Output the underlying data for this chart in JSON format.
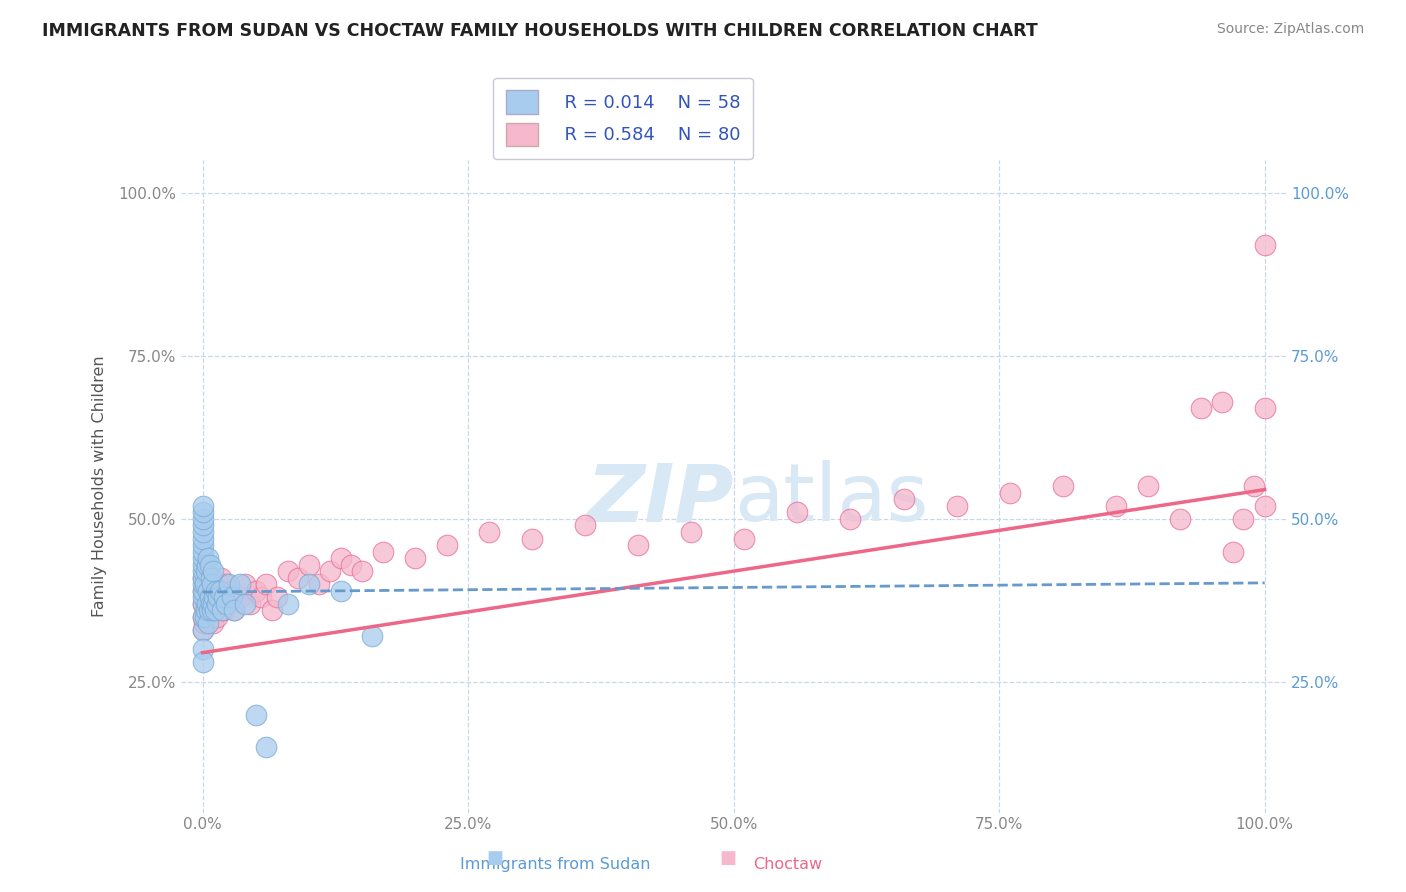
{
  "title": "IMMIGRANTS FROM SUDAN VS CHOCTAW FAMILY HOUSEHOLDS WITH CHILDREN CORRELATION CHART",
  "source": "Source: ZipAtlas.com",
  "ylabel": "Family Households with Children",
  "x_label_bottom_left": "Immigrants from Sudan",
  "x_label_bottom_right": "Choctaw",
  "xlim": [
    -0.02,
    1.02
  ],
  "ylim": [
    0.05,
    1.05
  ],
  "xtick_labels": [
    "0.0%",
    "25.0%",
    "50.0%",
    "75.0%",
    "100.0%"
  ],
  "xtick_positions": [
    0.0,
    0.25,
    0.5,
    0.75,
    1.0
  ],
  "ytick_labels": [
    "25.0%",
    "50.0%",
    "75.0%",
    "100.0%"
  ],
  "ytick_positions": [
    0.25,
    0.5,
    0.75,
    1.0
  ],
  "legend_r1": "R = 0.014",
  "legend_n1": "N = 58",
  "legend_r2": "R = 0.584",
  "legend_n2": "N = 80",
  "color_blue": "#A8CCEE",
  "color_pink": "#F5B8CC",
  "color_blue_edge": "#7AABD4",
  "color_pink_edge": "#E87098",
  "color_line_blue": "#6699CC",
  "color_line_pink": "#EE6688",
  "watermark_text": "ZIPatlas",
  "watermark_color": "#D8E8F5",
  "grid_color": "#C8D8EC",
  "background_color": "#FFFFFF",
  "blue_scatter_x": [
    0.0,
    0.0,
    0.0,
    0.0,
    0.0,
    0.0,
    0.0,
    0.0,
    0.0,
    0.0,
    0.0,
    0.0,
    0.0,
    0.0,
    0.0,
    0.0,
    0.0,
    0.0,
    0.0,
    0.0,
    0.002,
    0.002,
    0.003,
    0.003,
    0.004,
    0.004,
    0.005,
    0.005,
    0.005,
    0.006,
    0.007,
    0.007,
    0.008,
    0.008,
    0.009,
    0.009,
    0.01,
    0.01,
    0.011,
    0.012,
    0.013,
    0.014,
    0.015,
    0.016,
    0.018,
    0.02,
    0.022,
    0.025,
    0.028,
    0.03,
    0.035,
    0.04,
    0.05,
    0.06,
    0.08,
    0.1,
    0.13,
    0.16
  ],
  "blue_scatter_y": [
    0.33,
    0.35,
    0.37,
    0.38,
    0.39,
    0.4,
    0.41,
    0.42,
    0.43,
    0.44,
    0.45,
    0.46,
    0.47,
    0.48,
    0.49,
    0.5,
    0.51,
    0.52,
    0.3,
    0.28,
    0.35,
    0.4,
    0.36,
    0.42,
    0.37,
    0.43,
    0.34,
    0.39,
    0.44,
    0.36,
    0.38,
    0.43,
    0.37,
    0.41,
    0.36,
    0.4,
    0.37,
    0.42,
    0.38,
    0.36,
    0.39,
    0.37,
    0.38,
    0.39,
    0.36,
    0.38,
    0.37,
    0.4,
    0.38,
    0.36,
    0.4,
    0.37,
    0.2,
    0.15,
    0.37,
    0.4,
    0.39,
    0.32
  ],
  "pink_scatter_x": [
    0.0,
    0.0,
    0.0,
    0.0,
    0.0,
    0.001,
    0.001,
    0.002,
    0.002,
    0.003,
    0.003,
    0.004,
    0.004,
    0.005,
    0.005,
    0.006,
    0.007,
    0.007,
    0.008,
    0.008,
    0.009,
    0.01,
    0.01,
    0.011,
    0.012,
    0.013,
    0.014,
    0.015,
    0.016,
    0.017,
    0.018,
    0.019,
    0.02,
    0.022,
    0.024,
    0.026,
    0.028,
    0.03,
    0.035,
    0.04,
    0.045,
    0.05,
    0.055,
    0.06,
    0.065,
    0.07,
    0.08,
    0.09,
    0.1,
    0.11,
    0.12,
    0.13,
    0.14,
    0.15,
    0.17,
    0.2,
    0.23,
    0.27,
    0.31,
    0.36,
    0.41,
    0.46,
    0.51,
    0.56,
    0.61,
    0.66,
    0.71,
    0.76,
    0.81,
    0.86,
    0.89,
    0.92,
    0.94,
    0.96,
    0.97,
    0.98,
    0.99,
    1.0,
    1.0,
    1.0
  ],
  "pink_scatter_y": [
    0.33,
    0.35,
    0.37,
    0.39,
    0.41,
    0.34,
    0.38,
    0.36,
    0.4,
    0.35,
    0.39,
    0.37,
    0.41,
    0.34,
    0.38,
    0.36,
    0.37,
    0.4,
    0.35,
    0.39,
    0.36,
    0.34,
    0.38,
    0.36,
    0.4,
    0.37,
    0.35,
    0.39,
    0.37,
    0.41,
    0.36,
    0.38,
    0.36,
    0.4,
    0.37,
    0.38,
    0.39,
    0.36,
    0.38,
    0.4,
    0.37,
    0.39,
    0.38,
    0.4,
    0.36,
    0.38,
    0.42,
    0.41,
    0.43,
    0.4,
    0.42,
    0.44,
    0.43,
    0.42,
    0.45,
    0.44,
    0.46,
    0.48,
    0.47,
    0.49,
    0.46,
    0.48,
    0.47,
    0.51,
    0.5,
    0.53,
    0.52,
    0.54,
    0.55,
    0.52,
    0.55,
    0.5,
    0.67,
    0.68,
    0.45,
    0.5,
    0.55,
    0.52,
    0.67,
    0.92
  ],
  "blue_line_x": [
    0.0,
    1.0
  ],
  "blue_line_y": [
    0.388,
    0.402
  ],
  "pink_line_x": [
    0.0,
    1.0
  ],
  "pink_line_y": [
    0.295,
    0.545
  ]
}
